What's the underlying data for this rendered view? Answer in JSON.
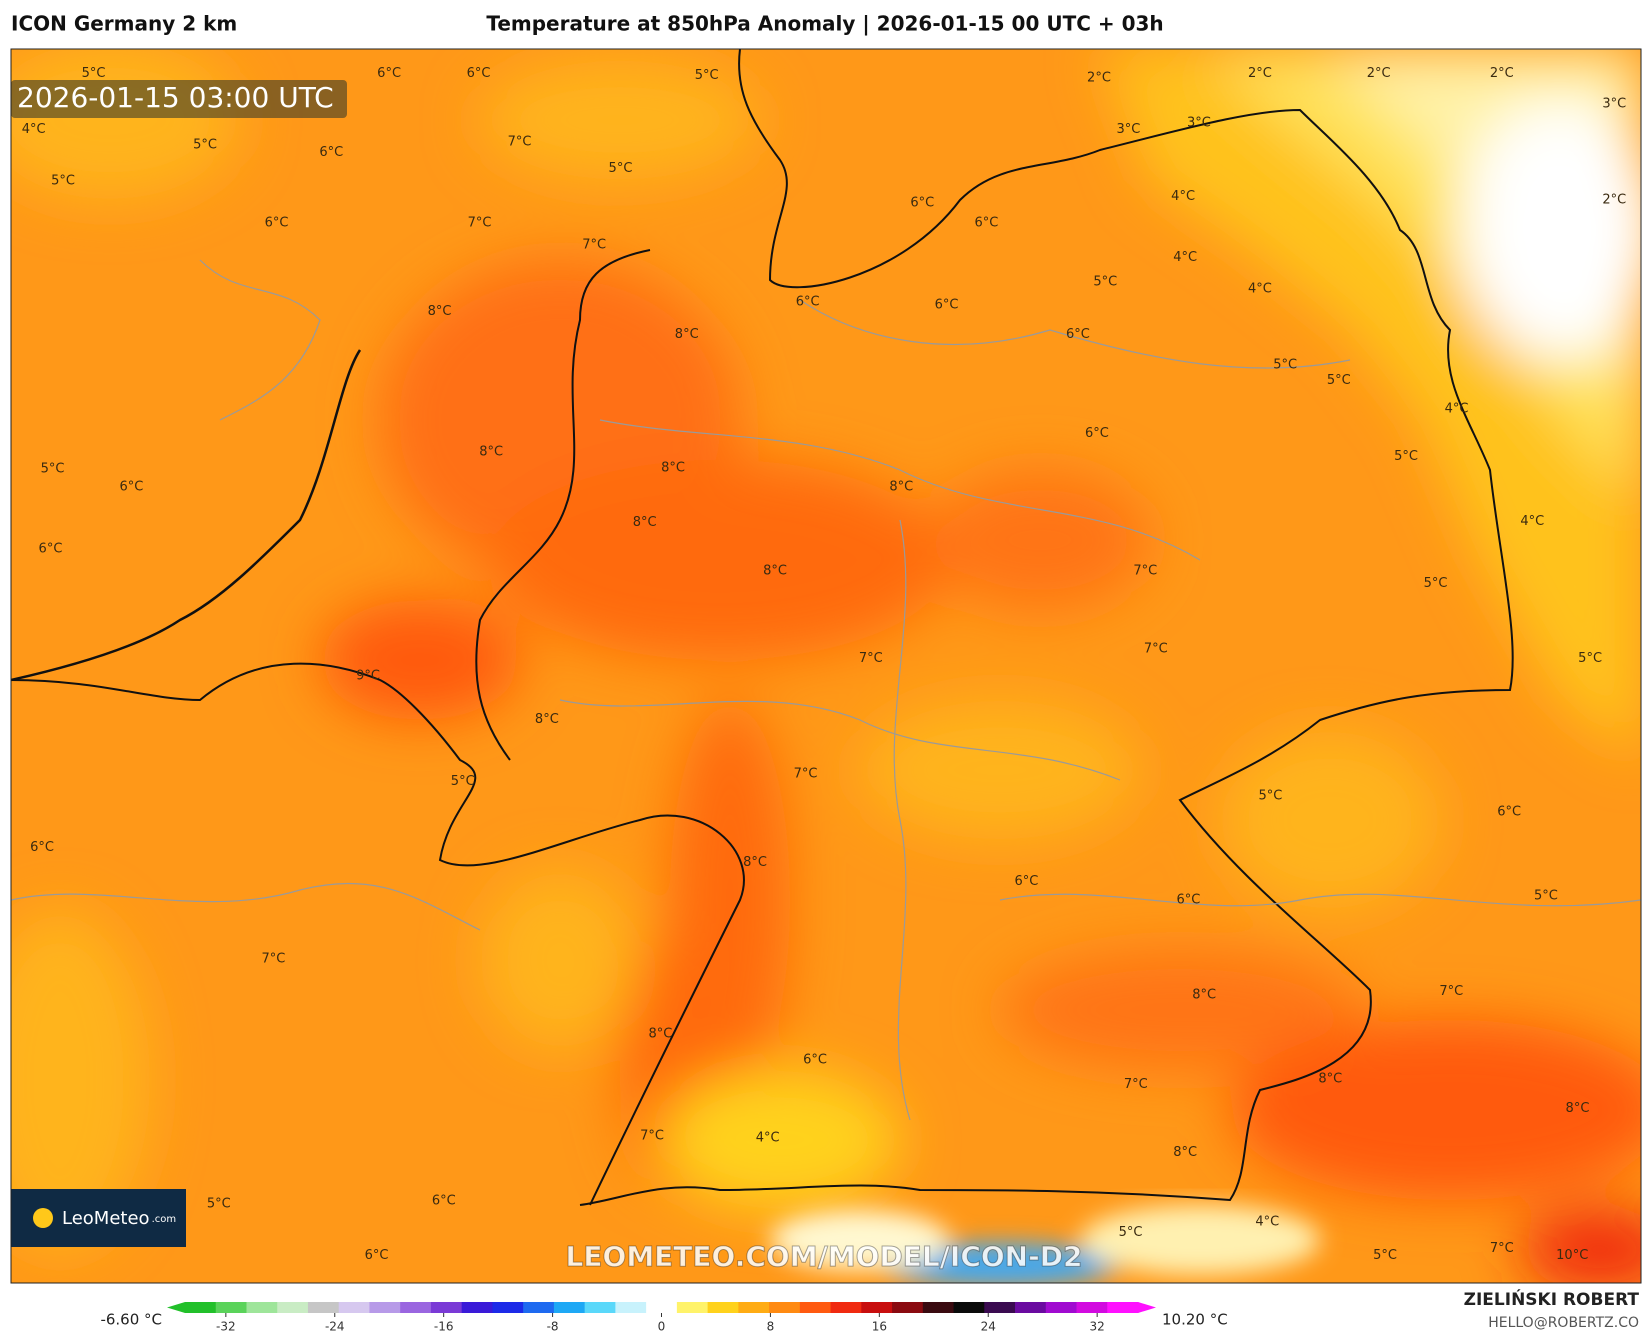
{
  "header": {
    "model": "ICON Germany 2 km",
    "title": "Temperature at 850hPa Anomaly | 2026-01-15 00 UTC + 03h"
  },
  "map": {
    "timestamp": "2026-01-15 03:00 UTC",
    "logo": "LeoMeteo",
    "logo_suffix": ".com",
    "watermark": "LEOMETEO.COM/MODEL/ICON-D2",
    "labels": [
      "5°C",
      "6°C",
      "6°C",
      "5°C",
      "2°C",
      "2°C",
      "2°C",
      "2°C",
      "3°C",
      "4°C",
      "5°C",
      "6°C",
      "7°C",
      "5°C",
      "3°C",
      "3°C",
      "4°C",
      "2°C",
      "5°C",
      "6°C",
      "7°C",
      "7°C",
      "6°C",
      "6°C",
      "4°C",
      "4°C",
      "5°C",
      "8°C",
      "8°C",
      "6°C",
      "6°C",
      "6°C",
      "5°C",
      "5°C",
      "4°C",
      "5°C",
      "6°C",
      "8°C",
      "8°C",
      "8°C",
      "6°C",
      "5°C",
      "4°C",
      "6°C",
      "8°C",
      "8°C",
      "7°C",
      "5°C",
      "9°C",
      "8°C",
      "7°C",
      "7°C",
      "5°C",
      "5°C",
      "7°C",
      "5°C",
      "6°C",
      "6°C",
      "8°C",
      "6°C",
      "6°C",
      "5°C",
      "7°C",
      "8°C",
      "7°C",
      "8°C",
      "6°C",
      "7°C",
      "8°C",
      "8°C",
      "7°C",
      "4°C",
      "8°C",
      "5°C",
      "6°C",
      "5°C",
      "4°C",
      "6°C",
      "5°C",
      "7°C",
      "10°C"
    ]
  },
  "colorbar": {
    "min_label": "-6.60 °C",
    "max_label": "10.20 °C",
    "lim": [
      -35,
      35
    ],
    "ticks": [
      -32,
      -24,
      -16,
      -8,
      0,
      8,
      16,
      24,
      32
    ],
    "colors": [
      "#22c02a",
      "#5ad35a",
      "#9ee59a",
      "#c9ecc4",
      "#c6c6c6",
      "#d6c8ef",
      "#b79ae8",
      "#9a66e0",
      "#7a3ad6",
      "#3a1ad8",
      "#1c2ae8",
      "#1e6af0",
      "#1ea8f5",
      "#5ad8fa",
      "#c8f2fc",
      "#ffffff",
      "#fff36a",
      "#ffd21c",
      "#ffac14",
      "#ff8a12",
      "#ff5a10",
      "#f02a10",
      "#c80e0e",
      "#8a0a10",
      "#3a0a10",
      "#0a0a0a",
      "#3a0a50",
      "#6a0aa0",
      "#a00ad0",
      "#d20ae0",
      "#ff10ff"
    ]
  },
  "author": {
    "name": "ZIELIŃSKI ROBERT",
    "email": "HELLO@ROBERTZ.CO"
  }
}
